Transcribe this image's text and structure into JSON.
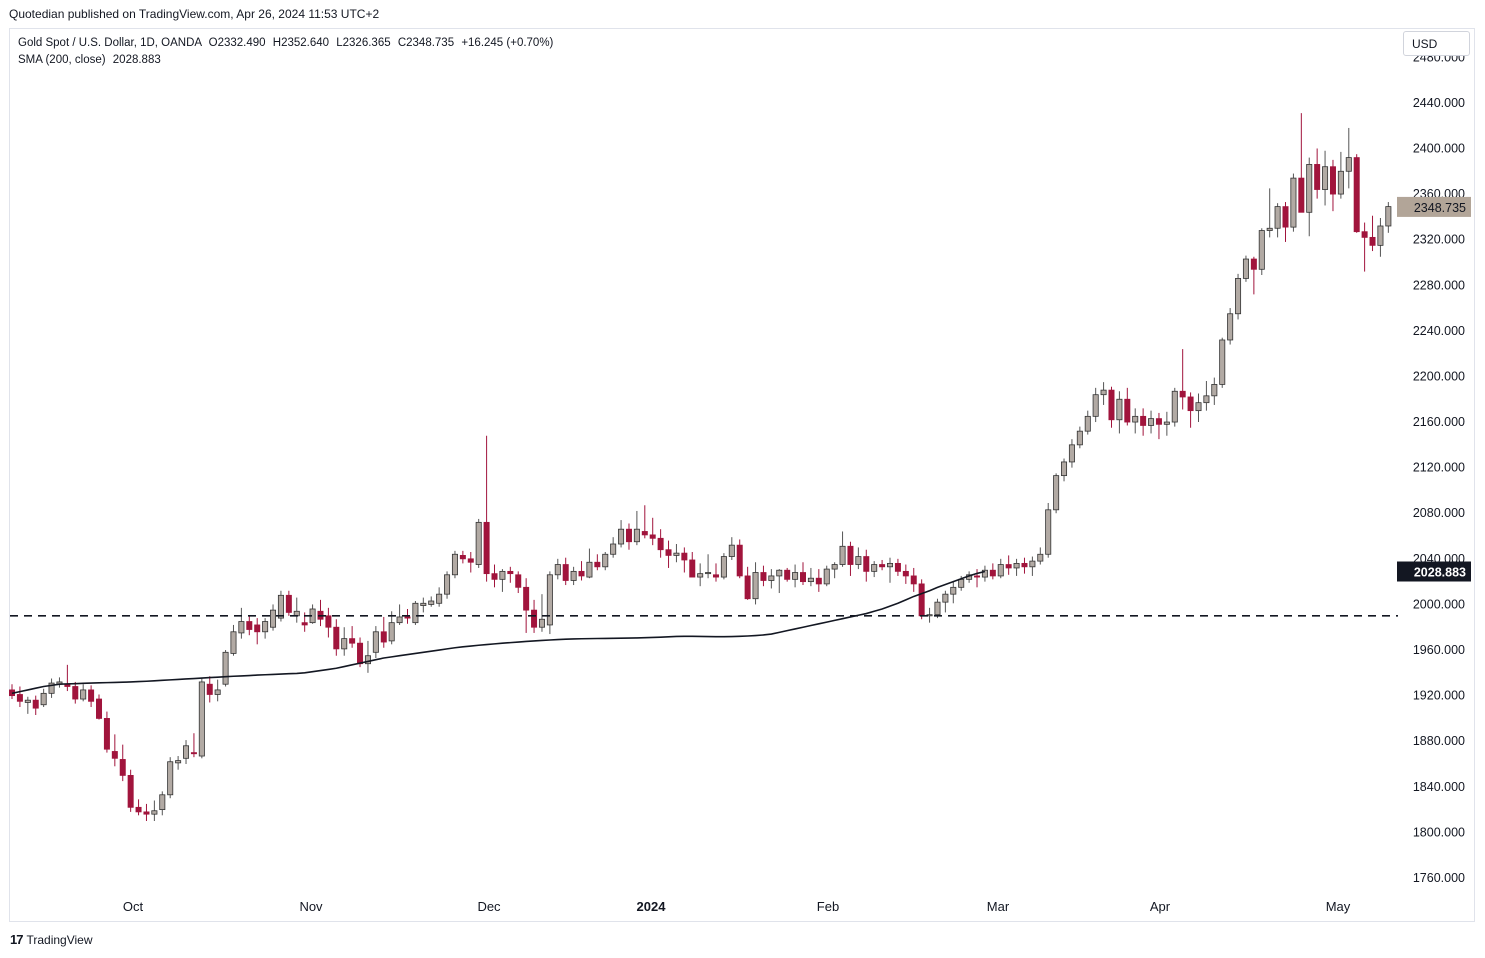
{
  "header": {
    "credit": "Quotedian published on TradingView.com, Apr 26, 2024 11:53 UTC+2"
  },
  "legend": {
    "line1": "Gold Spot / U.S. Dollar, 1D, OANDA",
    "o": "O2332.490",
    "h": "H2352.640",
    "l": "L2326.365",
    "c": "C2348.735",
    "change": "+16.245 (+0.70%)",
    "line2": "SMA (200, close)",
    "sma_value": "2028.883"
  },
  "currency": "USD",
  "footer": {
    "logo_icon": "tradingview-logo-icon",
    "brand": "TradingView"
  },
  "colors": {
    "up": "#b2aaa4",
    "down": "#a1143c",
    "sma": "#131722",
    "grid": "#ffffff",
    "last_price_bg": "#b2a598",
    "sma_label_bg": "#131722"
  },
  "chart_data": {
    "type": "candlestick",
    "x_labels": [
      "Oct",
      "Nov",
      "Dec",
      "2024",
      "Feb",
      "Mar",
      "Apr",
      "May"
    ],
    "y_ticks": [
      1760,
      1800,
      1840,
      1880,
      1920,
      1960,
      2000,
      2040,
      2080,
      2120,
      2160,
      2200,
      2240,
      2280,
      2320,
      2360,
      2400,
      2440,
      2480
    ],
    "y_tick_labels": [
      "1760.000",
      "1800.000",
      "1840.000",
      "1880.000",
      "1920.000",
      "1960.000",
      "2000.000",
      "2040.000",
      "2080.000",
      "2120.000",
      "2160.000",
      "2200.000",
      "2240.000",
      "2280.000",
      "2320.000",
      "2360.000",
      "2400.000",
      "2440.000",
      "2480.000"
    ],
    "ylim": [
      1732,
      2480
    ],
    "horizontal_line": {
      "value": 1990,
      "style": "dashed"
    },
    "last_price": {
      "value": 2348.735,
      "label": "2348.735"
    },
    "sma": {
      "name": "SMA (200, close)",
      "last_label": "2028.883",
      "values": [
        1922,
        1923.5,
        1925,
        1926.5,
        1928,
        1929,
        1930,
        1930.3,
        1930.5,
        1930.8,
        1931,
        1931.2,
        1931.4,
        1931.6,
        1931.8,
        1932,
        1932.3,
        1932.6,
        1933,
        1933.4,
        1933.8,
        1934.2,
        1934.6,
        1935,
        1935.4,
        1935.8,
        1936.2,
        1936.6,
        1937,
        1937.3,
        1937.6,
        1938,
        1938.3,
        1938.6,
        1938.9,
        1939.2,
        1939.5,
        1940,
        1941,
        1942,
        1943,
        1944,
        1945.5,
        1947,
        1948.5,
        1950,
        1951.5,
        1953,
        1954,
        1955,
        1956,
        1957,
        1958,
        1959,
        1960,
        1961,
        1962,
        1962.8,
        1963.5,
        1964.2,
        1964.8,
        1965.4,
        1966,
        1966.5,
        1967,
        1967.5,
        1968,
        1968.4,
        1968.8,
        1969.2,
        1969.5,
        1969.7,
        1969.9,
        1970,
        1970.1,
        1970.2,
        1970.3,
        1970.4,
        1970.5,
        1970.6,
        1970.8,
        1971,
        1971.3,
        1971.6,
        1971.9,
        1972,
        1972,
        1971.9,
        1971.8,
        1971.7,
        1971.7,
        1971.8,
        1972,
        1972.3,
        1972.7,
        1973.2,
        1974,
        1975.5,
        1977,
        1978.5,
        1980,
        1981.5,
        1983,
        1984.5,
        1986,
        1987.5,
        1989,
        1990.5,
        1992,
        1994,
        1996,
        1998.5,
        2001,
        2004,
        2007,
        2009.5,
        2012,
        2015,
        2017.5,
        2020,
        2022.5,
        2025,
        2027.2,
        2028.883
      ]
    },
    "candles": [
      [
        1925,
        1930,
        1917,
        1920
      ],
      [
        1921,
        1928,
        1910,
        1915
      ],
      [
        1914,
        1919,
        1904,
        1916
      ],
      [
        1916,
        1920,
        1903,
        1909
      ],
      [
        1912,
        1926,
        1910,
        1922
      ],
      [
        1922,
        1935,
        1918,
        1931
      ],
      [
        1930,
        1936,
        1927,
        1932
      ],
      [
        1930,
        1947,
        1924,
        1928
      ],
      [
        1928,
        1932,
        1913,
        1917
      ],
      [
        1917,
        1930,
        1915,
        1925
      ],
      [
        1925,
        1929,
        1910,
        1915
      ],
      [
        1917,
        1921,
        1899,
        1900
      ],
      [
        1900,
        1906,
        1870,
        1873
      ],
      [
        1871,
        1886,
        1858,
        1865
      ],
      [
        1864,
        1877,
        1845,
        1850
      ],
      [
        1850,
        1855,
        1818,
        1822
      ],
      [
        1822,
        1829,
        1815,
        1818
      ],
      [
        1818,
        1825,
        1810,
        1816
      ],
      [
        1816,
        1828,
        1810,
        1819
      ],
      [
        1820,
        1836,
        1815,
        1833
      ],
      [
        1833,
        1866,
        1830,
        1862
      ],
      [
        1861,
        1867,
        1855,
        1863
      ],
      [
        1865,
        1881,
        1860,
        1876
      ],
      [
        1870,
        1887,
        1866,
        1869
      ],
      [
        1867,
        1935,
        1865,
        1932
      ],
      [
        1930,
        1937,
        1914,
        1921
      ],
      [
        1921,
        1934,
        1915,
        1925
      ],
      [
        1930,
        1960,
        1928,
        1958
      ],
      [
        1957,
        1982,
        1955,
        1976
      ],
      [
        1975,
        1997,
        1970,
        1985
      ],
      [
        1985,
        1990,
        1973,
        1978
      ],
      [
        1982,
        1988,
        1965,
        1976
      ],
      [
        1976,
        1988,
        1970,
        1985
      ],
      [
        1980,
        2000,
        1977,
        1995
      ],
      [
        1988,
        2012,
        1985,
        2008
      ],
      [
        2008,
        2012,
        1990,
        1993
      ],
      [
        1990,
        2006,
        1984,
        1994
      ],
      [
        1984,
        1993,
        1976,
        1982
      ],
      [
        1984,
        2000,
        1983,
        1996
      ],
      [
        1994,
        2004,
        1981,
        1987
      ],
      [
        1990,
        1997,
        1971,
        1980
      ],
      [
        1980,
        1987,
        1955,
        1961
      ],
      [
        1961,
        1980,
        1955,
        1970
      ],
      [
        1970,
        1981,
        1962,
        1966
      ],
      [
        1966,
        1971,
        1945,
        1948
      ],
      [
        1948,
        1968,
        1940,
        1955
      ],
      [
        1958,
        1981,
        1953,
        1976
      ],
      [
        1976,
        1989,
        1962,
        1967
      ],
      [
        1968,
        1994,
        1965,
        1984
      ],
      [
        1984,
        2000,
        1982,
        1989
      ],
      [
        1989,
        1996,
        1983,
        1988
      ],
      [
        1984,
        2003,
        1982,
        2001
      ],
      [
        1999,
        2006,
        1993,
        2001
      ],
      [
        2000,
        2007,
        1998,
        2003
      ],
      [
        2001,
        2015,
        1998,
        2009
      ],
      [
        2009,
        2029,
        2005,
        2026
      ],
      [
        2026,
        2047,
        2023,
        2044
      ],
      [
        2043,
        2047,
        2036,
        2040
      ],
      [
        2040,
        2046,
        2028,
        2037
      ],
      [
        2035,
        2075,
        2032,
        2072
      ],
      [
        2072,
        2148,
        2020,
        2027
      ],
      [
        2027,
        2035,
        2015,
        2022
      ],
      [
        2022,
        2031,
        2011,
        2029
      ],
      [
        2029,
        2033,
        2019,
        2027
      ],
      [
        2026,
        2029,
        2010,
        2015
      ],
      [
        2015,
        2023,
        1975,
        1995
      ],
      [
        1995,
        2004,
        1975,
        1980
      ],
      [
        1980,
        2009,
        1976,
        1987
      ],
      [
        1982,
        2029,
        1974,
        2026
      ],
      [
        2026,
        2040,
        2022,
        2035
      ],
      [
        2035,
        2041,
        2017,
        2021
      ],
      [
        2021,
        2033,
        2017,
        2029
      ],
      [
        2029,
        2038,
        2021,
        2025
      ],
      [
        2024,
        2049,
        2023,
        2037
      ],
      [
        2037,
        2044,
        2030,
        2033
      ],
      [
        2033,
        2046,
        2030,
        2044
      ],
      [
        2044,
        2059,
        2041,
        2053
      ],
      [
        2053,
        2074,
        2050,
        2066
      ],
      [
        2066,
        2071,
        2048,
        2055
      ],
      [
        2055,
        2082,
        2052,
        2066
      ],
      [
        2064,
        2087,
        2058,
        2061
      ],
      [
        2061,
        2076,
        2052,
        2058
      ],
      [
        2058,
        2066,
        2041,
        2048
      ],
      [
        2048,
        2056,
        2032,
        2043
      ],
      [
        2043,
        2053,
        2037,
        2045
      ],
      [
        2045,
        2050,
        2028,
        2039
      ],
      [
        2039,
        2046,
        2025,
        2024
      ],
      [
        2024,
        2036,
        2016,
        2027
      ],
      [
        2027,
        2044,
        2023,
        2028
      ],
      [
        2026,
        2036,
        2020,
        2024
      ],
      [
        2024,
        2045,
        2022,
        2042
      ],
      [
        2042,
        2059,
        2039,
        2052
      ],
      [
        2052,
        2057,
        2023,
        2025
      ],
      [
        2025,
        2033,
        2004,
        2005
      ],
      [
        2005,
        2037,
        2000,
        2028
      ],
      [
        2028,
        2034,
        2016,
        2021
      ],
      [
        2021,
        2031,
        2014,
        2025
      ],
      [
        2025,
        2031,
        2010,
        2030
      ],
      [
        2030,
        2032,
        2020,
        2022
      ],
      [
        2022,
        2035,
        2015,
        2028
      ],
      [
        2028,
        2037,
        2017,
        2020
      ],
      [
        2020,
        2032,
        2016,
        2023
      ],
      [
        2023,
        2031,
        2011,
        2018
      ],
      [
        2018,
        2034,
        2016,
        2031
      ],
      [
        2031,
        2037,
        2023,
        2035
      ],
      [
        2035,
        2064,
        2033,
        2051
      ],
      [
        2051,
        2055,
        2025,
        2035
      ],
      [
        2035,
        2050,
        2031,
        2042
      ],
      [
        2042,
        2048,
        2020,
        2029
      ],
      [
        2029,
        2038,
        2024,
        2035
      ],
      [
        2035,
        2039,
        2030,
        2033
      ],
      [
        2033,
        2041,
        2019,
        2036
      ],
      [
        2036,
        2040,
        2025,
        2029
      ],
      [
        2029,
        2035,
        2018,
        2025
      ],
      [
        2025,
        2032,
        2011,
        2018
      ],
      [
        2018,
        2022,
        1987,
        1990
      ],
      [
        1990,
        1997,
        1984,
        1991
      ],
      [
        1991,
        2005,
        1988,
        2002
      ],
      [
        2002,
        2012,
        1993,
        2009
      ],
      [
        2009,
        2020,
        2001,
        2015
      ],
      [
        2015,
        2025,
        2012,
        2022
      ],
      [
        2022,
        2029,
        2019,
        2026
      ],
      [
        2025,
        2031,
        2015,
        2024
      ],
      [
        2024,
        2034,
        2020,
        2030
      ],
      [
        2030,
        2036,
        2022,
        2025
      ],
      [
        2025,
        2040,
        2023,
        2035
      ],
      [
        2035,
        2043,
        2026,
        2032
      ],
      [
        2032,
        2040,
        2025,
        2036
      ],
      [
        2036,
        2041,
        2027,
        2033
      ],
      [
        2033,
        2042,
        2025,
        2038
      ],
      [
        2038,
        2050,
        2035,
        2044
      ],
      [
        2044,
        2089,
        2041,
        2083
      ],
      [
        2083,
        2115,
        2080,
        2113
      ],
      [
        2113,
        2128,
        2108,
        2125
      ],
      [
        2125,
        2145,
        2120,
        2140
      ],
      [
        2140,
        2156,
        2137,
        2152
      ],
      [
        2152,
        2170,
        2149,
        2165
      ],
      [
        2165,
        2190,
        2160,
        2184
      ],
      [
        2184,
        2195,
        2175,
        2188
      ],
      [
        2188,
        2191,
        2155,
        2162
      ],
      [
        2162,
        2187,
        2150,
        2180
      ],
      [
        2180,
        2190,
        2157,
        2160
      ],
      [
        2160,
        2172,
        2150,
        2165
      ],
      [
        2165,
        2172,
        2148,
        2157
      ],
      [
        2157,
        2170,
        2150,
        2163
      ],
      [
        2163,
        2168,
        2145,
        2158
      ],
      [
        2158,
        2169,
        2148,
        2160
      ],
      [
        2160,
        2190,
        2156,
        2187
      ],
      [
        2187,
        2224,
        2171,
        2182
      ],
      [
        2182,
        2186,
        2155,
        2170
      ],
      [
        2170,
        2185,
        2160,
        2177
      ],
      [
        2177,
        2196,
        2170,
        2183
      ],
      [
        2183,
        2199,
        2175,
        2193
      ],
      [
        2193,
        2234,
        2190,
        2232
      ],
      [
        2232,
        2260,
        2228,
        2255
      ],
      [
        2255,
        2290,
        2250,
        2286
      ],
      [
        2286,
        2306,
        2283,
        2303
      ],
      [
        2303,
        2305,
        2272,
        2294
      ],
      [
        2294,
        2330,
        2289,
        2328
      ],
      [
        2328,
        2365,
        2322,
        2330
      ],
      [
        2330,
        2352,
        2322,
        2349
      ],
      [
        2349,
        2353,
        2318,
        2331
      ],
      [
        2331,
        2378,
        2327,
        2374
      ],
      [
        2374,
        2431,
        2350,
        2344
      ],
      [
        2344,
        2392,
        2323,
        2386
      ],
      [
        2386,
        2400,
        2356,
        2364
      ],
      [
        2364,
        2398,
        2350,
        2384
      ],
      [
        2384,
        2390,
        2345,
        2360
      ],
      [
        2360,
        2397,
        2356,
        2380
      ],
      [
        2380,
        2418,
        2365,
        2392
      ],
      [
        2392,
        2395,
        2326,
        2327
      ],
      [
        2327,
        2335,
        2292,
        2322
      ],
      [
        2322,
        2341,
        2310,
        2315
      ],
      [
        2315,
        2339,
        2305,
        2332
      ],
      [
        2332,
        2353,
        2326,
        2349
      ]
    ]
  }
}
